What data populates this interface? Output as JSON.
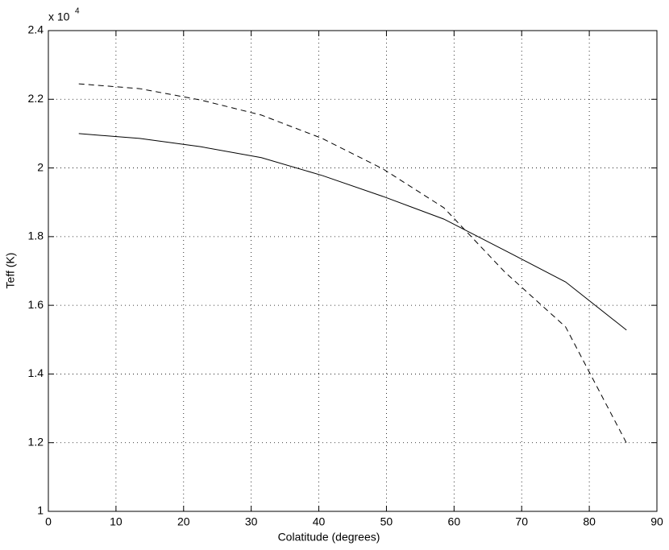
{
  "chart_data": {
    "type": "line",
    "x_label": "Colatitude (degrees)",
    "y_label": "Teff (K)",
    "y_multiplier": "x 10",
    "y_multiplier_exponent": "4",
    "x": [
      4.5,
      13.5,
      22.5,
      31.5,
      40.5,
      49.5,
      58.5,
      67.5,
      76.5,
      85.5
    ],
    "series": [
      {
        "color": "#000000",
        "style": "solid",
        "values": [
          2.1,
          2.086,
          2.062,
          2.03,
          1.978,
          1.917,
          1.851,
          1.76,
          1.668,
          1.528
        ]
      },
      {
        "color": "#000000",
        "style": "dashed",
        "values": [
          2.245,
          2.231,
          2.198,
          2.154,
          2.086,
          1.997,
          1.884,
          1.697,
          1.537,
          1.199
        ]
      }
    ],
    "xlim": [
      0,
      90
    ],
    "xticks": [
      0,
      10,
      20,
      30,
      40,
      50,
      60,
      70,
      80,
      90
    ],
    "ylim": [
      1,
      2.4
    ],
    "yticks": [
      1,
      1.2,
      1.4,
      1.6,
      1.8,
      2,
      2.2,
      2.4
    ],
    "grid": true
  }
}
